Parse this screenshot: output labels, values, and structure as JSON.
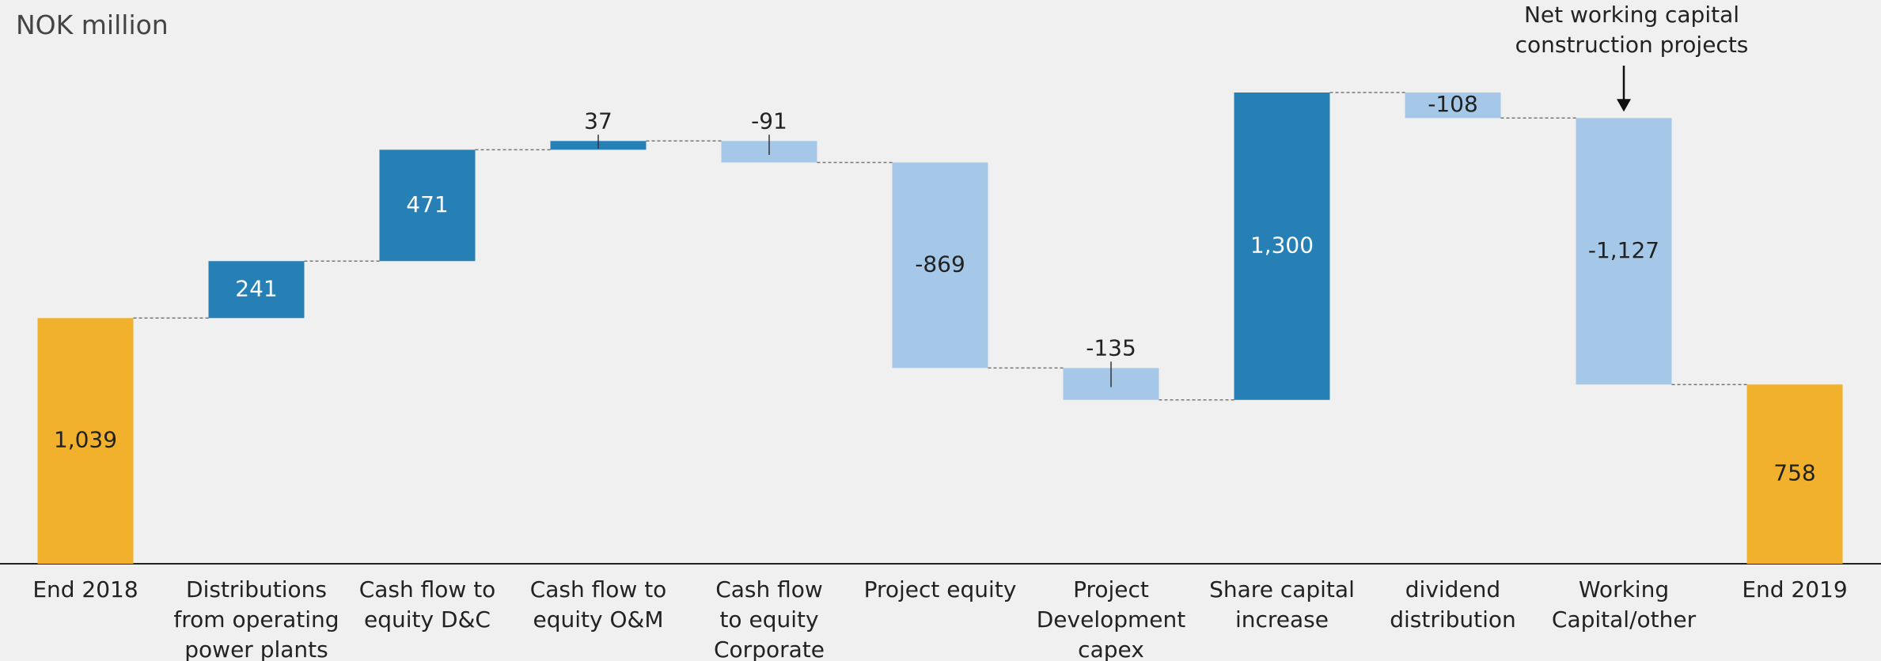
{
  "chart_data": {
    "type": "waterfall",
    "title": "NOK million",
    "categories": [
      "End 2018",
      "Distributions\nfrom operating\npower plants",
      "Cash flow to\nequity D&C",
      "Cash flow to\nequity O&M",
      "Cash flow\nto equity\nCorporate",
      "Project equity",
      "Project\nDevelopment\ncapex",
      "Share capital\nincrease",
      "dividend\ndistribution",
      "Working\nCapital/other",
      "End 2019"
    ],
    "values": [
      1039,
      241,
      471,
      37,
      -91,
      -869,
      -135,
      1300,
      -108,
      -1127,
      758
    ],
    "value_labels": [
      "1,039",
      "241",
      "471",
      "37",
      "-91",
      "-869",
      "-135",
      "1,300",
      "-108",
      "-1,127",
      "758"
    ],
    "is_total": [
      true,
      false,
      false,
      false,
      false,
      false,
      false,
      false,
      false,
      false,
      true
    ],
    "label_positions": [
      "inside",
      "inside",
      "inside",
      "above",
      "above",
      "inside",
      "above",
      "inside",
      "inside",
      "inside",
      "inside"
    ],
    "colors": {
      "total": "#f2b12d",
      "increase": "#2680b6",
      "decrease": "#a5c8e9"
    },
    "annotation": {
      "text": "Net working capital\nconstruction projects",
      "category_index": 9
    }
  }
}
